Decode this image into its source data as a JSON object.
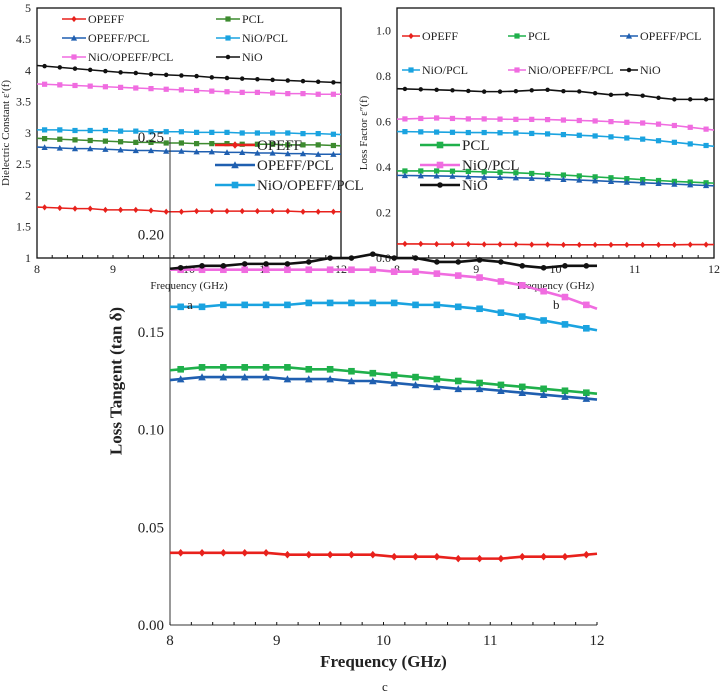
{
  "colors": {
    "red": "#e8211c",
    "green_a": "#3d8b2f",
    "green": "#1fb04b",
    "blue": "#1f5fb0",
    "lightblue": "#1aa3e0",
    "pink": "#f06ce0",
    "black": "#111111"
  },
  "chart_data": [
    {
      "panel": "a",
      "type": "line",
      "xlabel": "Frequency (GHz)",
      "ylabel": "Dielectric Constant ε′(f)",
      "xlim": [
        8,
        12
      ],
      "ylim": [
        1,
        5
      ],
      "xticks": [
        "8",
        "9",
        "10",
        "11",
        "12"
      ],
      "yticks": [
        "1",
        "1.5",
        "2",
        "2.5",
        "3",
        "3.5",
        "4",
        "4.5",
        "5"
      ],
      "x": [
        8.1,
        8.3,
        8.5,
        8.7,
        8.9,
        9.1,
        9.3,
        9.5,
        9.7,
        9.9,
        10.1,
        10.3,
        10.5,
        10.7,
        10.9,
        11.1,
        11.3,
        11.5,
        11.7,
        11.9
      ],
      "legend": "top",
      "series": [
        {
          "name": "OPEFF",
          "color": "#e8211c",
          "marker": "diamond",
          "values": [
            1.81,
            1.8,
            1.79,
            1.79,
            1.77,
            1.77,
            1.77,
            1.76,
            1.74,
            1.74,
            1.75,
            1.75,
            1.75,
            1.75,
            1.75,
            1.75,
            1.75,
            1.74,
            1.74,
            1.74
          ]
        },
        {
          "name": "PCL",
          "color": "#3d8b2f",
          "marker": "square",
          "values": [
            2.91,
            2.9,
            2.89,
            2.88,
            2.87,
            2.86,
            2.85,
            2.85,
            2.84,
            2.84,
            2.83,
            2.83,
            2.83,
            2.82,
            2.82,
            2.82,
            2.81,
            2.81,
            2.81,
            2.8
          ]
        },
        {
          "name": "OPEFF/PCL",
          "color": "#1f5fb0",
          "marker": "triangle",
          "values": [
            2.77,
            2.76,
            2.75,
            2.75,
            2.74,
            2.73,
            2.72,
            2.72,
            2.71,
            2.71,
            2.7,
            2.7,
            2.69,
            2.69,
            2.68,
            2.68,
            2.67,
            2.67,
            2.66,
            2.66
          ]
        },
        {
          "name": "NiO/PCL",
          "color": "#1aa3e0",
          "marker": "square",
          "values": [
            3.05,
            3.05,
            3.04,
            3.04,
            3.04,
            3.03,
            3.03,
            3.02,
            3.02,
            3.02,
            3.01,
            3.01,
            3.01,
            3.0,
            3.0,
            3.0,
            3.0,
            2.99,
            2.99,
            2.98
          ]
        },
        {
          "name": "NiO/OPEFF/PCL",
          "color": "#f06ce0",
          "marker": "square",
          "values": [
            3.78,
            3.77,
            3.76,
            3.75,
            3.74,
            3.73,
            3.72,
            3.71,
            3.7,
            3.69,
            3.68,
            3.67,
            3.66,
            3.65,
            3.65,
            3.64,
            3.63,
            3.63,
            3.62,
            3.62
          ]
        },
        {
          "name": "NiO",
          "color": "#111111",
          "marker": "circle",
          "values": [
            4.07,
            4.05,
            4.03,
            4.01,
            3.99,
            3.97,
            3.96,
            3.94,
            3.93,
            3.92,
            3.91,
            3.89,
            3.88,
            3.87,
            3.86,
            3.85,
            3.84,
            3.83,
            3.82,
            3.81
          ]
        }
      ]
    },
    {
      "panel": "b",
      "type": "line",
      "xlabel": "Frequency (GHz)",
      "ylabel": "Loss Factor ε″(f)",
      "xlim": [
        8,
        12
      ],
      "ylim": [
        0,
        1.1
      ],
      "xticks": [
        "8",
        "9",
        "10",
        "11",
        "12"
      ],
      "yticks": [
        "0.0",
        "0.2",
        "0.4",
        "0.6",
        "0.8",
        "1.0"
      ],
      "x": [
        8.1,
        8.3,
        8.5,
        8.7,
        8.9,
        9.1,
        9.3,
        9.5,
        9.7,
        9.9,
        10.1,
        10.3,
        10.5,
        10.7,
        10.9,
        11.1,
        11.3,
        11.5,
        11.7,
        11.9
      ],
      "legend": "top",
      "series": [
        {
          "name": "OPEFF",
          "color": "#e8211c",
          "marker": "diamond",
          "values": [
            0.062,
            0.062,
            0.061,
            0.061,
            0.061,
            0.06,
            0.06,
            0.06,
            0.059,
            0.059,
            0.058,
            0.058,
            0.058,
            0.058,
            0.058,
            0.058,
            0.058,
            0.058,
            0.059,
            0.059
          ]
        },
        {
          "name": "PCL",
          "color": "#1fb04b",
          "marker": "square",
          "values": [
            0.383,
            0.383,
            0.383,
            0.382,
            0.381,
            0.379,
            0.377,
            0.375,
            0.372,
            0.368,
            0.365,
            0.361,
            0.357,
            0.353,
            0.349,
            0.345,
            0.341,
            0.337,
            0.334,
            0.331
          ]
        },
        {
          "name": "OPEFF/PCL",
          "color": "#1f5fb0",
          "marker": "triangle",
          "values": [
            0.363,
            0.362,
            0.361,
            0.36,
            0.358,
            0.356,
            0.355,
            0.353,
            0.351,
            0.349,
            0.346,
            0.343,
            0.34,
            0.337,
            0.334,
            0.331,
            0.328,
            0.325,
            0.322,
            0.319
          ]
        },
        {
          "name": "NiO/PCL",
          "color": "#1aa3e0",
          "marker": "square",
          "values": [
            0.556,
            0.555,
            0.554,
            0.553,
            0.552,
            0.552,
            0.551,
            0.55,
            0.548,
            0.546,
            0.543,
            0.54,
            0.537,
            0.533,
            0.528,
            0.523,
            0.516,
            0.509,
            0.502,
            0.495
          ]
        },
        {
          "name": "NiO/OPEFF/PCL",
          "color": "#f06ce0",
          "marker": "square",
          "values": [
            0.612,
            0.614,
            0.616,
            0.614,
            0.612,
            0.612,
            0.611,
            0.61,
            0.61,
            0.609,
            0.607,
            0.605,
            0.603,
            0.6,
            0.597,
            0.594,
            0.589,
            0.583,
            0.575,
            0.567
          ]
        },
        {
          "name": "NiO",
          "color": "#111111",
          "marker": "circle",
          "values": [
            0.744,
            0.742,
            0.74,
            0.738,
            0.735,
            0.732,
            0.732,
            0.734,
            0.738,
            0.74,
            0.734,
            0.733,
            0.725,
            0.718,
            0.72,
            0.714,
            0.705,
            0.698,
            0.698,
            0.698
          ]
        }
      ]
    },
    {
      "panel": "c",
      "type": "line",
      "xlabel": "Frequency (GHz)",
      "ylabel": "Loss Tangent (tan δ)",
      "xlim": [
        8,
        12
      ],
      "ylim": [
        0,
        0.25
      ],
      "xticks": [
        "8",
        "9",
        "10",
        "11",
        "12"
      ],
      "yticks": [
        "0.00",
        "0.05",
        "0.10",
        "0.15",
        "0.20",
        "0.25"
      ],
      "x": [
        8.1,
        8.3,
        8.5,
        8.7,
        8.9,
        9.1,
        9.3,
        9.5,
        9.7,
        9.9,
        10.1,
        10.3,
        10.5,
        10.7,
        10.9,
        11.1,
        11.3,
        11.5,
        11.7,
        11.9
      ],
      "legend": "top",
      "series": [
        {
          "name": "OPEFF",
          "color": "#e8211c",
          "marker": "diamond",
          "values": [
            0.037,
            0.037,
            0.037,
            0.037,
            0.037,
            0.036,
            0.036,
            0.036,
            0.036,
            0.036,
            0.035,
            0.035,
            0.035,
            0.034,
            0.034,
            0.034,
            0.035,
            0.035,
            0.035,
            0.036
          ]
        },
        {
          "name": "PCL",
          "color": "#1fb04b",
          "marker": "square",
          "values": [
            0.131,
            0.132,
            0.132,
            0.132,
            0.132,
            0.132,
            0.131,
            0.131,
            0.13,
            0.129,
            0.128,
            0.127,
            0.126,
            0.125,
            0.124,
            0.123,
            0.122,
            0.121,
            0.12,
            0.119
          ]
        },
        {
          "name": "OPEFF/PCL",
          "color": "#1f5fb0",
          "marker": "triangle",
          "values": [
            0.126,
            0.127,
            0.127,
            0.127,
            0.127,
            0.126,
            0.126,
            0.126,
            0.125,
            0.125,
            0.124,
            0.123,
            0.122,
            0.121,
            0.121,
            0.12,
            0.119,
            0.118,
            0.117,
            0.116
          ]
        },
        {
          "name": "NiO/PCL",
          "color": "#f06ce0",
          "marker": "square",
          "values": [
            0.182,
            0.182,
            0.182,
            0.182,
            0.182,
            0.182,
            0.182,
            0.182,
            0.182,
            0.182,
            0.181,
            0.181,
            0.18,
            0.179,
            0.178,
            0.176,
            0.174,
            0.171,
            0.168,
            0.164
          ]
        },
        {
          "name": "NiO/OPEFF/PCL",
          "color": "#1aa3e0",
          "marker": "square",
          "values": [
            0.163,
            0.163,
            0.164,
            0.164,
            0.164,
            0.164,
            0.165,
            0.165,
            0.165,
            0.165,
            0.165,
            0.164,
            0.164,
            0.163,
            0.162,
            0.16,
            0.158,
            0.156,
            0.154,
            0.152
          ]
        },
        {
          "name": "NiO",
          "color": "#111111",
          "marker": "circle",
          "values": [
            0.183,
            0.184,
            0.184,
            0.185,
            0.185,
            0.185,
            0.186,
            0.188,
            0.188,
            0.19,
            0.188,
            0.188,
            0.186,
            0.186,
            0.187,
            0.186,
            0.184,
            0.183,
            0.184,
            0.184
          ]
        }
      ]
    }
  ]
}
